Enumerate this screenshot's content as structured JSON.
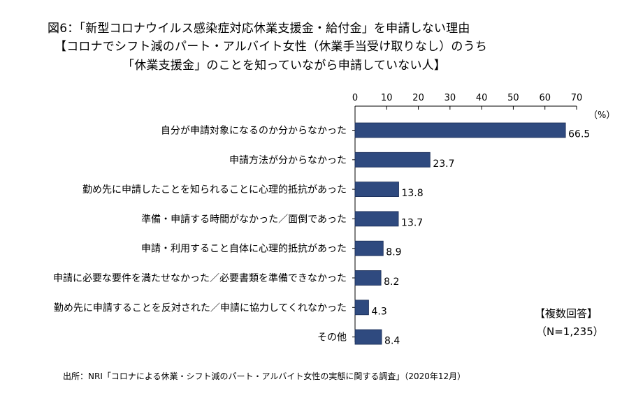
{
  "title": {
    "line1": "図6：「新型コロナウイルス感染症対応休業支援金・給付金」を申請しない理由",
    "line2": "【コロナでシフト減のパート・アルバイト女性（休業手当受け取りなし）のうち",
    "line3": "「休業支援金」のことを知っていながら申請していない人】"
  },
  "chart_data": {
    "type": "bar",
    "orientation": "horizontal",
    "categories": [
      "自分が申請対象になるのか分からなかった",
      "申請方法が分からなかった",
      "勤め先に申請したことを知られることに心理的抵抗があった",
      "準備・申請する時間がなかった／面倒であった",
      "申請・利用すること自体に心理的抵抗があった",
      "申請に必要な要件を満たせなかった／必要書類を準備できなかった",
      "勤め先に申請することを反対された／申請に協力してくれなかった",
      "その他"
    ],
    "values": [
      66.5,
      23.7,
      13.8,
      13.7,
      8.9,
      8.2,
      4.3,
      8.4
    ],
    "value_labels": [
      "66.5",
      "23.7",
      "13.8",
      "13.7",
      "8.9",
      "8.2",
      "4.3",
      "8.4"
    ],
    "xlim": [
      0,
      70
    ],
    "xticks": [
      0,
      10,
      20,
      30,
      40,
      50,
      60,
      70
    ],
    "xtick_labels": [
      "0",
      "10",
      "20",
      "30",
      "40",
      "50",
      "60",
      "70"
    ],
    "unit": "（%）",
    "bar_color": "#2f4a7f",
    "grid": false,
    "axis_position": "top"
  },
  "notes": {
    "multiple_answer": "【複数回答】",
    "sample_size": "（N=1,235）"
  },
  "source": "出所：NRI「コロナによる休業・シフト減のパート・アルバイト女性の実態に関する調査」（2020年12月）"
}
